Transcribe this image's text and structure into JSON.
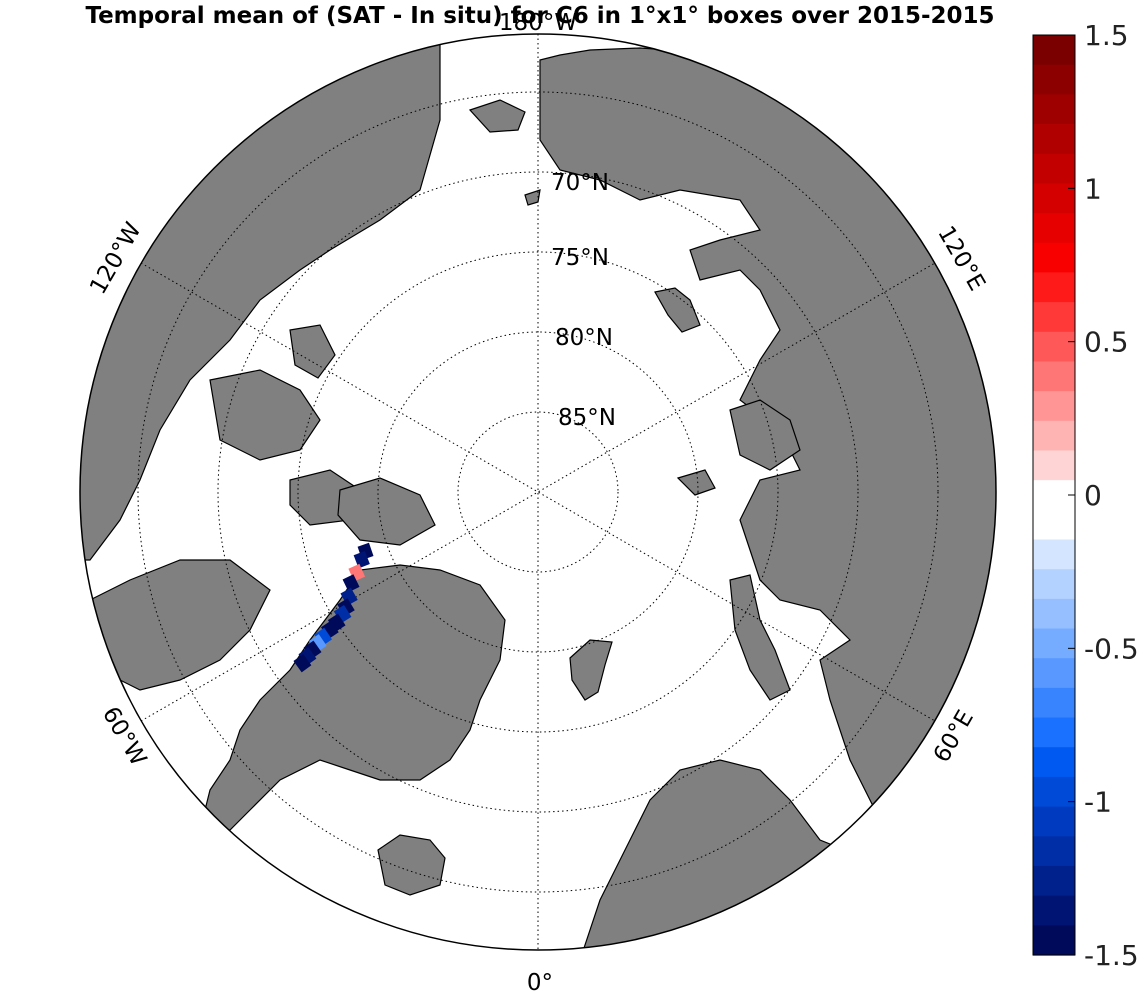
{
  "title": "Temporal mean of (SAT - In situ) for C6 in 1°x1° boxes over 2015-2015",
  "map": {
    "projection": "north polar stereographic",
    "ocean_color": "#ffffff",
    "land_color": "#808080",
    "graticule_style": "dotted",
    "latitude_labels": [
      {
        "lat": 70,
        "text": "70°N"
      },
      {
        "lat": 75,
        "text": "75°N"
      },
      {
        "lat": 80,
        "text": "80°N"
      },
      {
        "lat": 85,
        "text": "85°N"
      }
    ],
    "longitude_labels": [
      {
        "lon": 180,
        "text": "180°W"
      },
      {
        "lon": 120,
        "text": "120°E"
      },
      {
        "lon": 60,
        "text": "60°E"
      },
      {
        "lon": 0,
        "text": "0°"
      },
      {
        "lon": -60,
        "text": "60°W"
      },
      {
        "lon": -120,
        "text": "120°W"
      }
    ]
  },
  "colorbar": {
    "min": -1.5,
    "max": 1.5,
    "ticks": [
      "1.5",
      "1",
      "0.5",
      "0",
      "-0.5",
      "-1",
      "-1.5"
    ],
    "colors_top_to_bottom": [
      "#7a0000",
      "#8c0000",
      "#9e0000",
      "#b00000",
      "#c20000",
      "#d40000",
      "#e60000",
      "#f80000",
      "#ff1a1a",
      "#ff3838",
      "#ff5858",
      "#ff7676",
      "#ff9595",
      "#ffb4b4",
      "#ffd4d4",
      "#ffffff",
      "#ffffff",
      "#d4e6ff",
      "#b4d2ff",
      "#95bfff",
      "#76acff",
      "#5898ff",
      "#3884ff",
      "#1a70ff",
      "#0059f0",
      "#004ad8",
      "#003bbf",
      "#002ea6",
      "#00218c",
      "#001473",
      "#000a5a"
    ]
  },
  "data_cells": [
    {
      "lon": -71,
      "lat": 78.6,
      "value": -1.5
    },
    {
      "lon": -69,
      "lat": 78.2,
      "value": -1.4
    },
    {
      "lon": -66,
      "lat": 77.6,
      "value": 0.4
    },
    {
      "lon": -64,
      "lat": 77.0,
      "value": -1.5
    },
    {
      "lon": -61,
      "lat": 76.5,
      "value": -1.3
    },
    {
      "lon": -59,
      "lat": 76.0,
      "value": -1.5
    },
    {
      "lon": -58,
      "lat": 75.6,
      "value": -1.2
    },
    {
      "lon": -57,
      "lat": 75.0,
      "value": -1.5
    },
    {
      "lon": -56.5,
      "lat": 74.4,
      "value": -1.5
    },
    {
      "lon": -56,
      "lat": 73.8,
      "value": -1.0
    },
    {
      "lon": -55.5,
      "lat": 73.3,
      "value": -0.6
    },
    {
      "lon": -55,
      "lat": 72.8,
      "value": -1.5
    },
    {
      "lon": -54.5,
      "lat": 72.3,
      "value": -1.4
    },
    {
      "lon": -54,
      "lat": 71.8,
      "value": -1.5
    }
  ]
}
